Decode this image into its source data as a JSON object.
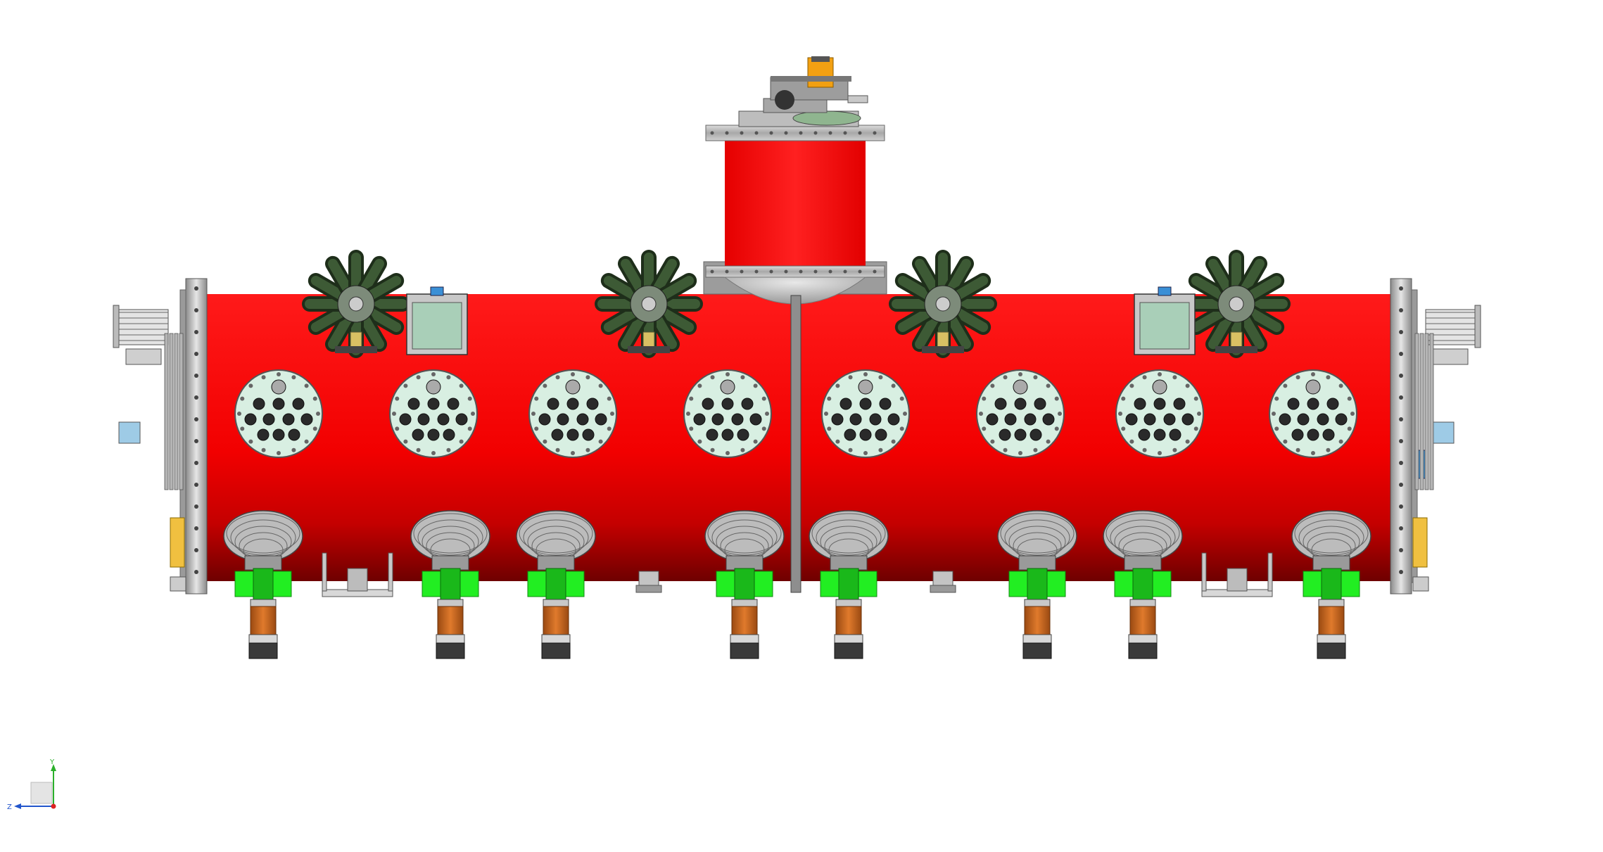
{
  "colors": {
    "vessel_red": "#ff0000",
    "vessel_red_dark": "#7a0000",
    "valve_green": "#22ee22",
    "flange_mint": "#d8efe2",
    "bellows_orange": "#c8641e",
    "gauge_orange": "#f2a012",
    "steel_gray": "#b8b8b8",
    "cooling_green": "#3d5a35",
    "window_green": "#a9cfb8",
    "fitting_blue": "#3a8fd6",
    "axis_y": "#2bb02b",
    "axis_z": "#2255cc",
    "axis_origin": "#dd2222"
  },
  "view_triad": {
    "y_axis_label": "Y",
    "z_axis_label": "Z"
  }
}
